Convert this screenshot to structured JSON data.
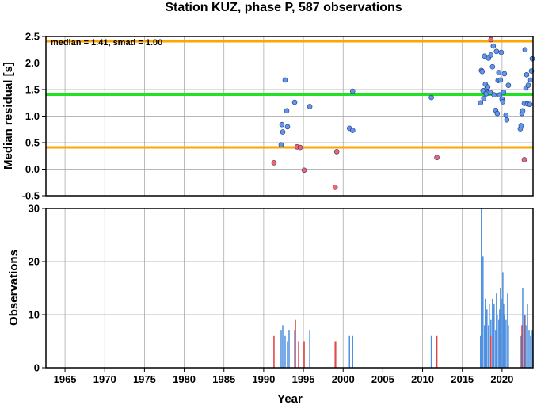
{
  "chart_data": [
    {
      "type": "scatter",
      "title": "Station KUZ, phase P, 587 observations",
      "annotation": "median = 1.41, smad = 1.00",
      "xlabel": "",
      "ylabel": "Median residual [s]",
      "xlim": [
        1962.6,
        2023.9
      ],
      "ylim": [
        -0.5,
        2.5
      ],
      "yticks": [
        "-0.5",
        "0.0",
        "0.5",
        "1.0",
        "1.5",
        "2.0",
        "2.5"
      ],
      "xticks": [
        1965,
        1970,
        1975,
        1980,
        1985,
        1990,
        1995,
        2000,
        2005,
        2010,
        2015,
        2020
      ],
      "grid": true,
      "reference_lines": [
        {
          "name": "median",
          "value": 1.41,
          "color": "#22e022"
        },
        {
          "name": "upper bound",
          "value": 2.41,
          "color": "#ffa500"
        },
        {
          "name": "lower bound",
          "value": 0.41,
          "color": "#ffa500"
        }
      ],
      "series": [
        {
          "color": "#6495ed",
          "points": [
            [
              1992.2,
              0.46
            ],
            [
              1992.3,
              0.84
            ],
            [
              1992.4,
              0.7
            ],
            [
              1992.7,
              1.68
            ],
            [
              1992.9,
              1.1
            ],
            [
              1993.0,
              0.8
            ],
            [
              1993.9,
              1.26
            ],
            [
              1995.8,
              1.18
            ],
            [
              2000.8,
              0.77
            ],
            [
              2001.2,
              0.73
            ],
            [
              2001.2,
              1.47
            ],
            [
              2011.1,
              1.35
            ],
            [
              2017.3,
              1.25
            ],
            [
              2017.4,
              1.86
            ],
            [
              2017.5,
              1.84
            ],
            [
              2017.6,
              1.48
            ],
            [
              2017.7,
              1.33
            ],
            [
              2017.8,
              2.13
            ],
            [
              2017.9,
              1.6
            ],
            [
              2018.0,
              1.42
            ],
            [
              2018.1,
              1.52
            ],
            [
              2018.2,
              1.55
            ],
            [
              2018.3,
              2.09
            ],
            [
              2018.5,
              1.45
            ],
            [
              2018.6,
              2.15
            ],
            [
              2018.8,
              1.93
            ],
            [
              2018.9,
              2.32
            ],
            [
              2019.0,
              1.4
            ],
            [
              2019.2,
              1.11
            ],
            [
              2019.3,
              2.22
            ],
            [
              2019.4,
              1.05
            ],
            [
              2019.5,
              1.67
            ],
            [
              2019.6,
              1.82
            ],
            [
              2019.7,
              1.4
            ],
            [
              2019.8,
              1.68
            ],
            [
              2019.9,
              2.2
            ],
            [
              2020.0,
              1.32
            ],
            [
              2020.1,
              1.27
            ],
            [
              2020.2,
              1.45
            ],
            [
              2020.3,
              1.8
            ],
            [
              2020.5,
              1.02
            ],
            [
              2020.6,
              0.93
            ],
            [
              2020.8,
              1.58
            ],
            [
              2022.3,
              0.76
            ],
            [
              2022.4,
              0.82
            ],
            [
              2022.5,
              1.05
            ],
            [
              2022.6,
              1.1
            ],
            [
              2022.8,
              1.24
            ],
            [
              2022.9,
              2.25
            ],
            [
              2023.0,
              1.53
            ],
            [
              2023.1,
              1.78
            ],
            [
              2023.2,
              1.23
            ],
            [
              2023.3,
              1.58
            ],
            [
              2023.5,
              1.22
            ],
            [
              2023.6,
              1.68
            ],
            [
              2023.7,
              1.85
            ],
            [
              2023.8,
              2.08
            ]
          ]
        },
        {
          "color": "#ff6060",
          "points": [
            [
              1991.3,
              0.12
            ],
            [
              1994.2,
              0.42
            ],
            [
              1994.6,
              0.41
            ],
            [
              1995.1,
              -0.02
            ],
            [
              1999.0,
              -0.34
            ],
            [
              1999.2,
              0.33
            ],
            [
              2011.8,
              0.22
            ],
            [
              2018.6,
              2.44
            ],
            [
              2022.8,
              0.18
            ]
          ]
        }
      ]
    },
    {
      "type": "bar",
      "xlabel": "Year",
      "ylabel": "Observations",
      "xlim": [
        1962.6,
        2023.9
      ],
      "ylim": [
        0,
        30
      ],
      "yticks": [
        "0",
        "10",
        "20",
        "30"
      ],
      "xticks": [
        "1965",
        "1970",
        "1975",
        "1980",
        "1985",
        "1990",
        "1995",
        "2000",
        "2005",
        "2010",
        "2015",
        "2020"
      ],
      "grid": true,
      "series": [
        {
          "color": "#4d8fe0",
          "bars": [
            [
              1992.2,
              7
            ],
            [
              1992.4,
              8
            ],
            [
              1992.7,
              6
            ],
            [
              1993.0,
              5
            ],
            [
              1993.2,
              7
            ],
            [
              1993.9,
              7
            ],
            [
              1995.8,
              7
            ],
            [
              2000.8,
              6
            ],
            [
              2001.2,
              6
            ],
            [
              2011.1,
              6
            ],
            [
              2017.3,
              6
            ],
            [
              2017.4,
              30
            ],
            [
              2017.6,
              21
            ],
            [
              2017.8,
              8
            ],
            [
              2017.9,
              13
            ],
            [
              2018.0,
              10
            ],
            [
              2018.1,
              11
            ],
            [
              2018.3,
              8
            ],
            [
              2018.4,
              12
            ],
            [
              2018.6,
              9
            ],
            [
              2018.8,
              13
            ],
            [
              2018.9,
              11
            ],
            [
              2019.0,
              12
            ],
            [
              2019.2,
              7
            ],
            [
              2019.3,
              14
            ],
            [
              2019.4,
              10
            ],
            [
              2019.6,
              9
            ],
            [
              2019.7,
              11
            ],
            [
              2019.8,
              15
            ],
            [
              2019.9,
              13
            ],
            [
              2020.1,
              18
            ],
            [
              2020.2,
              12
            ],
            [
              2020.3,
              10
            ],
            [
              2020.5,
              9
            ],
            [
              2020.7,
              14
            ],
            [
              2020.8,
              8
            ],
            [
              2022.4,
              6
            ],
            [
              2022.6,
              15
            ],
            [
              2022.8,
              9
            ],
            [
              2022.9,
              10
            ],
            [
              2023.0,
              8
            ],
            [
              2023.2,
              12
            ],
            [
              2023.4,
              7
            ],
            [
              2023.6,
              6
            ],
            [
              2023.8,
              7
            ]
          ]
        },
        {
          "color": "#e04040",
          "bars": [
            [
              1991.3,
              6
            ],
            [
              1994.0,
              9
            ],
            [
              1994.4,
              5
            ],
            [
              1995.1,
              5
            ],
            [
              1999.0,
              5
            ],
            [
              1999.2,
              5
            ],
            [
              2011.8,
              6
            ],
            [
              2018.6,
              6
            ],
            [
              2022.5,
              8
            ],
            [
              2022.8,
              10
            ]
          ]
        }
      ]
    }
  ],
  "colors": {
    "median_line": "#22e022",
    "bound_lines": "#ffa500",
    "points_normal": "#6495ed",
    "points_outlier": "#ff6060",
    "grid": "#a0a0a0"
  }
}
